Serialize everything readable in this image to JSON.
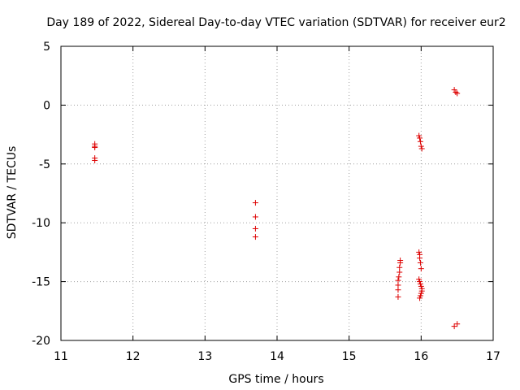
{
  "chart_data": {
    "type": "scatter",
    "title": "Day 189 of 2022, Sidereal Day-to-day VTEC variation (SDTVAR) for receiver eur2",
    "xlabel": "GPS time / hours",
    "ylabel": "SDTVAR / TECUs",
    "xlim": [
      11,
      17
    ],
    "ylim": [
      -20,
      5
    ],
    "xticks": [
      11,
      12,
      13,
      14,
      15,
      16,
      17
    ],
    "yticks": [
      5,
      0,
      -5,
      -10,
      -15,
      -20
    ],
    "xtick_labels": [
      "11",
      "12",
      "13",
      "14",
      "15",
      "16",
      "17"
    ],
    "ytick_labels": [
      "5",
      "0",
      "-5",
      "-10",
      "-15",
      "-20"
    ],
    "grid": true,
    "marker": "+",
    "color": "#dd0000",
    "series": [
      {
        "name": "SDTVAR",
        "points": [
          [
            11.47,
            -3.3
          ],
          [
            11.47,
            -3.5
          ],
          [
            11.47,
            -3.6
          ],
          [
            11.47,
            -4.5
          ],
          [
            11.47,
            -4.7
          ],
          [
            13.7,
            -8.3
          ],
          [
            13.7,
            -9.5
          ],
          [
            13.7,
            -10.5
          ],
          [
            13.7,
            -11.2
          ],
          [
            15.68,
            -16.3
          ],
          [
            15.68,
            -15.7
          ],
          [
            15.68,
            -15.3
          ],
          [
            15.68,
            -14.9
          ],
          [
            15.69,
            -14.6
          ],
          [
            15.7,
            -14.2
          ],
          [
            15.7,
            -13.8
          ],
          [
            15.71,
            -13.4
          ],
          [
            15.71,
            -13.2
          ],
          [
            15.97,
            -12.5
          ],
          [
            15.98,
            -12.7
          ],
          [
            15.98,
            -13.0
          ],
          [
            15.99,
            -13.4
          ],
          [
            16.0,
            -13.9
          ],
          [
            15.97,
            -14.8
          ],
          [
            15.98,
            -15.0
          ],
          [
            15.99,
            -15.2
          ],
          [
            16.0,
            -15.4
          ],
          [
            16.01,
            -15.6
          ],
          [
            16.01,
            -15.8
          ],
          [
            16.0,
            -16.0
          ],
          [
            15.99,
            -16.2
          ],
          [
            15.98,
            -16.4
          ],
          [
            15.97,
            -2.6
          ],
          [
            15.98,
            -2.8
          ],
          [
            15.99,
            -3.1
          ],
          [
            16.0,
            -3.5
          ],
          [
            16.01,
            -3.7
          ],
          [
            16.46,
            1.3
          ],
          [
            16.48,
            1.1
          ],
          [
            16.5,
            1.0
          ],
          [
            16.46,
            -18.8
          ],
          [
            16.5,
            -18.6
          ]
        ]
      }
    ]
  }
}
